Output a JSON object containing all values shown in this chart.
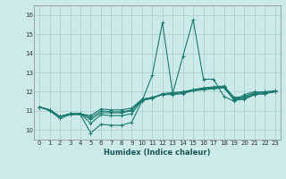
{
  "xlabel": "Humidex (Indice chaleur)",
  "ylabel": "",
  "bg_color": "#cceaea",
  "line_color": "#1a7a6e",
  "grid_color": "#aacccc",
  "xlim": [
    -0.5,
    23.5
  ],
  "ylim": [
    9.5,
    16.5
  ],
  "xticks": [
    0,
    1,
    2,
    3,
    4,
    5,
    6,
    7,
    8,
    9,
    10,
    11,
    12,
    13,
    14,
    15,
    16,
    17,
    18,
    19,
    20,
    21,
    22,
    23
  ],
  "yticks": [
    10,
    11,
    12,
    13,
    14,
    15,
    16
  ],
  "series": [
    [
      11.2,
      11.0,
      10.6,
      10.8,
      10.8,
      9.85,
      10.3,
      10.25,
      10.25,
      10.4,
      11.5,
      12.85,
      15.6,
      11.9,
      13.85,
      15.75,
      12.65,
      12.65,
      11.75,
      11.5,
      11.85,
      12.0,
      11.95,
      12.0
    ],
    [
      11.2,
      11.05,
      10.7,
      10.85,
      10.85,
      10.35,
      10.8,
      10.75,
      10.75,
      10.85,
      11.55,
      11.65,
      11.9,
      11.95,
      12.0,
      12.1,
      12.15,
      12.2,
      12.25,
      11.55,
      11.6,
      11.85,
      11.9,
      12.0
    ],
    [
      11.2,
      11.05,
      10.7,
      10.85,
      10.85,
      10.55,
      10.9,
      10.9,
      10.9,
      11.0,
      11.55,
      11.65,
      11.85,
      11.85,
      11.9,
      12.05,
      12.1,
      12.15,
      12.2,
      11.6,
      11.65,
      11.85,
      11.9,
      12.0
    ],
    [
      11.2,
      11.05,
      10.7,
      10.85,
      10.85,
      10.65,
      11.0,
      10.95,
      10.95,
      11.05,
      11.6,
      11.7,
      11.85,
      11.9,
      11.95,
      12.05,
      12.15,
      12.2,
      12.25,
      11.65,
      11.7,
      11.9,
      11.95,
      12.0
    ],
    [
      11.2,
      11.05,
      10.7,
      10.85,
      10.85,
      10.75,
      11.1,
      11.05,
      11.05,
      11.15,
      11.6,
      11.7,
      11.85,
      11.9,
      11.95,
      12.1,
      12.2,
      12.25,
      12.3,
      11.7,
      11.75,
      11.95,
      12.0,
      12.05
    ]
  ],
  "marker": "+",
  "marker_size": 3,
  "linewidth": 0.8,
  "xlabel_fontsize": 6,
  "tick_fontsize": 5,
  "grid_linewidth": 0.5
}
